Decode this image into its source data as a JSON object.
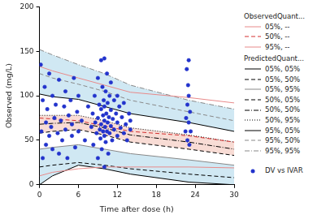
{
  "chart_data": {
    "type": "line",
    "x_label": "Time after dose (h)",
    "y_label": "Observed (mg/L)",
    "xlim": [
      0,
      30
    ],
    "xticks": [
      0,
      6,
      12,
      18,
      24,
      30
    ],
    "ylim": [
      0,
      200
    ],
    "yticks": [
      0,
      50,
      100,
      150,
      200
    ],
    "grid": false,
    "legend": "right",
    "x": [
      0,
      2,
      6,
      10,
      14,
      23,
      30
    ],
    "series_groups": [
      {
        "title": "ObservedQuant...",
        "series": [
          {
            "name": "05%, --",
            "color": "#e88a8a",
            "line_style": "solid",
            "values": [
              10,
              14,
              18,
              20,
              20,
              20,
              19
            ]
          },
          {
            "name": "50%, --",
            "color": "#d43030",
            "line_style": "dashed",
            "values": [
              75,
              74,
              72,
              66,
              60,
              55,
              48
            ]
          },
          {
            "name": "95%, --",
            "color": "#e88a8a",
            "line_style": "solid",
            "values": [
              133,
              128,
              120,
              112,
              104,
              98,
              92
            ]
          }
        ]
      },
      {
        "title": "PredictedQuant...",
        "series": [
          {
            "name": "05%, 05%",
            "color": "#000000",
            "line_style": "solid",
            "values": [
              0,
              10,
              22,
              18,
              12,
              3,
              0
            ]
          },
          {
            "name": "05%, 50%",
            "color": "#000000",
            "line_style": "dashed",
            "values": [
              20,
              22,
              25,
              22,
              18,
              12,
              8
            ]
          },
          {
            "name": "05%, 95%",
            "color": "#888888",
            "line_style": "solid",
            "values": [
              40,
              42,
              45,
              40,
              35,
              28,
              22
            ]
          },
          {
            "name": "50%, 05%",
            "color": "#000000",
            "line_style": "dashed",
            "values": [
              58,
              60,
              62,
              56,
              48,
              40,
              33
            ]
          },
          {
            "name": "50%, 50%",
            "color": "#000000",
            "line_style": "dashdot",
            "values": [
              68,
              69,
              70,
              64,
              56,
              48,
              40
            ]
          },
          {
            "name": "50%, 95%",
            "color": "#000000",
            "line_style": "dotted",
            "values": [
              78,
              78,
              78,
              72,
              64,
              56,
              48
            ]
          },
          {
            "name": "95%, 05%",
            "color": "#000000",
            "line_style": "solid",
            "values": [
              102,
              99,
              96,
              88,
              80,
              70,
              60
            ]
          },
          {
            "name": "95%, 50%",
            "color": "#888888",
            "line_style": "dashed",
            "values": [
              125,
              120,
              113,
              105,
              95,
              82,
              72
            ]
          },
          {
            "name": "95%, 95%",
            "color": "#888888",
            "line_style": "dashdot",
            "values": [
              152,
              146,
              135,
              125,
              112,
              95,
              85
            ]
          }
        ]
      },
      {
        "series": [
          {
            "name": "DV vs IVAR",
            "type": "scatter",
            "color": "#2233cc",
            "marker": "circle",
            "x": [
              0.2,
              0.3,
              0.5,
              0.5,
              0.8,
              1,
              1,
              1.2,
              1.5,
              1.5,
              1.8,
              2,
              2,
              2.3,
              2.5,
              2.8,
              3,
              3,
              3.3,
              3.5,
              3.8,
              4,
              4,
              4.3,
              4.5,
              4.8,
              5,
              5,
              5.3,
              5.5,
              5.8,
              6,
              6,
              6.5,
              7,
              7.5,
              8,
              8.2,
              8.3,
              8.5,
              8.6,
              8.8,
              9,
              9,
              9,
              9.2,
              9.3,
              9.4,
              9.5,
              9.5,
              9.5,
              9.6,
              9.7,
              9.8,
              9.8,
              9.9,
              10,
              10,
              10,
              10,
              10,
              10.1,
              10.2,
              10.2,
              10.3,
              10.4,
              10.4,
              10.5,
              10.5,
              10.6,
              10.7,
              10.8,
              10.8,
              11,
              11,
              11,
              11.2,
              11.3,
              11.5,
              11.5,
              11.8,
              12,
              12,
              12,
              12.3,
              12.5,
              12.7,
              13,
              13,
              13.3,
              13.5,
              13.8,
              14,
              14,
              22.5,
              22.6,
              22.7,
              22.8,
              22.8,
              23,
              23,
              23,
              23.1,
              23.2,
              23.3,
              22.9
            ],
            "values": [
              135,
              60,
              95,
              30,
              110,
              70,
              45,
              85,
              55,
              125,
              65,
              40,
              100,
              75,
              90,
              58,
              118,
              35,
              72,
              50,
              88,
              62,
              105,
              30,
              78,
              95,
              55,
              68,
              120,
              42,
              82,
              60,
              100,
              72,
              50,
              88,
              65,
              80,
              45,
              100,
              70,
              58,
              120,
              75,
              30,
              90,
              62,
              52,
              140,
              85,
              68,
              40,
              110,
              78,
              60,
              95,
              142,
              72,
              55,
              20,
              88,
              65,
              105,
              48,
              80,
              125,
              60,
              92,
              70,
              35,
              76,
              100,
              58,
              84,
              66,
              115,
              50,
              74,
              95,
              62,
              80,
              70,
              55,
              100,
              88,
              64,
              76,
              58,
              92,
              68,
              50,
              80,
              62,
              72,
              60,
              75,
              130,
              90,
              50,
              140,
              70,
              100,
              45,
              82,
              60,
              112
            ]
          }
        ]
      }
    ]
  }
}
